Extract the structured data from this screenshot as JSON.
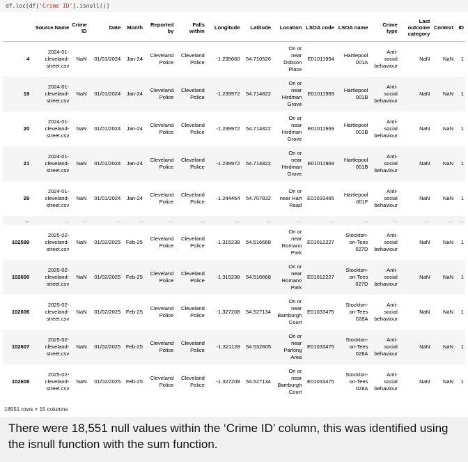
{
  "code": {
    "prefix": "df.loc[df[",
    "string": "'Crime ID'",
    "suffix": "].isnull()]"
  },
  "table": {
    "columns": [
      "",
      "Source.Name",
      "Crime ID",
      "Date",
      "Month",
      "Reported by",
      "Falls within",
      "Longitude",
      "Latitude",
      "Location",
      "LSOA code",
      "LSOA name",
      "Crime type",
      "Last outcome category",
      "Context",
      "ID"
    ],
    "rows": [
      [
        "4",
        "2024-01-\ncleveland-\nstreet.csv",
        "NaN",
        "01/01/2024",
        "Jan-24",
        "Cleveland\nPolice",
        "Cleveland\nPolice",
        "-1.235660",
        "54.710526",
        "On or\nnear\nDobson\nPlace",
        "E01011954",
        "Hartlepool\n001A",
        "Anti-\nsocial\nbehaviour",
        "NaN",
        "NaN",
        "1"
      ],
      [
        "19",
        "2024-01-\ncleveland-\nstreet.csv",
        "NaN",
        "01/01/2024",
        "Jan-24",
        "Cleveland\nPolice",
        "Cleveland\nPolice",
        "-1.239972",
        "54.714822",
        "On or\nnear\nHirdman\nGrove",
        "E01011969",
        "Hartlepool\n001B",
        "Anti-\nsocial\nbehaviour",
        "NaN",
        "NaN",
        "1"
      ],
      [
        "20",
        "2024-01-\ncleveland-\nstreet.csv",
        "NaN",
        "01/01/2024",
        "Jan-24",
        "Cleveland\nPolice",
        "Cleveland\nPolice",
        "-1.239972",
        "54.714822",
        "On or\nnear\nHirdman\nGrove",
        "E01011969",
        "Hartlepool\n001B",
        "Anti-\nsocial\nbehaviour",
        "NaN",
        "NaN",
        "1"
      ],
      [
        "21",
        "2024-01-\ncleveland-\nstreet.csv",
        "NaN",
        "01/01/2024",
        "Jan-24",
        "Cleveland\nPolice",
        "Cleveland\nPolice",
        "-1.239972",
        "54.714822",
        "On or\nnear\nHirdman\nGrove",
        "E01011969",
        "Hartlepool\n001B",
        "Anti-\nsocial\nbehaviour",
        "NaN",
        "NaN",
        "1"
      ],
      [
        "29",
        "2024-01-\ncleveland-\nstreet.csv",
        "NaN",
        "01/01/2024",
        "Jan-24",
        "Cleveland\nPolice",
        "Cleveland\nPolice",
        "-1.244464",
        "54.707832",
        "On or\nnear Hart\nRoad",
        "E01033465",
        "Hartlepool\n001F",
        "Anti-\nsocial\nbehaviour",
        "NaN",
        "NaN",
        "1"
      ],
      [
        "...",
        "...",
        "...",
        "...",
        "...",
        "...",
        "...",
        "...",
        "...",
        "...",
        "...",
        "...",
        "...",
        "...",
        "...",
        "..."
      ],
      [
        "102599",
        "2025-02-\ncleveland-\nstreet.csv",
        "NaN",
        "01/02/2025",
        "Feb-25",
        "Cleveland\nPolice",
        "Cleveland\nPolice",
        "-1.315238",
        "54.516668",
        "On or\nnear\nRomano\nPark",
        "E01012227",
        "Stockton-\non-Tees\n027D",
        "Anti-\nsocial\nbehaviour",
        "NaN",
        "NaN",
        "1"
      ],
      [
        "102600",
        "2025-02-\ncleveland-\nstreet.csv",
        "NaN",
        "01/02/2025",
        "Feb-25",
        "Cleveland\nPolice",
        "Cleveland\nPolice",
        "-1.315238",
        "54.516668",
        "On or\nnear\nRomano\nPark",
        "E01012227",
        "Stockton-\non-Tees\n027D",
        "Anti-\nsocial\nbehaviour",
        "NaN",
        "NaN",
        "1"
      ],
      [
        "102606",
        "2025-02-\ncleveland-\nstreet.csv",
        "NaN",
        "01/02/2025",
        "Feb-25",
        "Cleveland\nPolice",
        "Cleveland\nPolice",
        "-1.327208",
        "54.527134",
        "On or\nnear\nBamburgh\nCourt",
        "E01033475",
        "Stockton-\non-Tees\n028A",
        "Anti-\nsocial\nbehaviour",
        "NaN",
        "NaN",
        "1"
      ],
      [
        "102607",
        "2025-02-\ncleveland-\nstreet.csv",
        "NaN",
        "01/02/2025",
        "Feb-25",
        "Cleveland\nPolice",
        "Cleveland\nPolice",
        "-1.321128",
        "54.532805",
        "On or\nnear\nParking\nArea",
        "E01033475",
        "Stockton-\non-Tees\n028A",
        "Anti-\nsocial\nbehaviour",
        "NaN",
        "NaN",
        "1"
      ],
      [
        "102608",
        "2025-02-\ncleveland-\nstreet.csv",
        "NaN",
        "01/02/2025",
        "Feb-25",
        "Cleveland\nPolice",
        "Cleveland\nPolice",
        "-1.327208",
        "54.527134",
        "On or\nnear\nBamburgh\nCourt",
        "E01033475",
        "Stockton-\non-Tees\n028A",
        "Anti-\nsocial\nbehaviour",
        "NaN",
        "NaN",
        "1"
      ]
    ]
  },
  "summary": "18551 rows × 15 columns",
  "caption": "There were 18,551 null values within the ‘Crime ID’ column, this was identified using the isnull function with the sum function."
}
